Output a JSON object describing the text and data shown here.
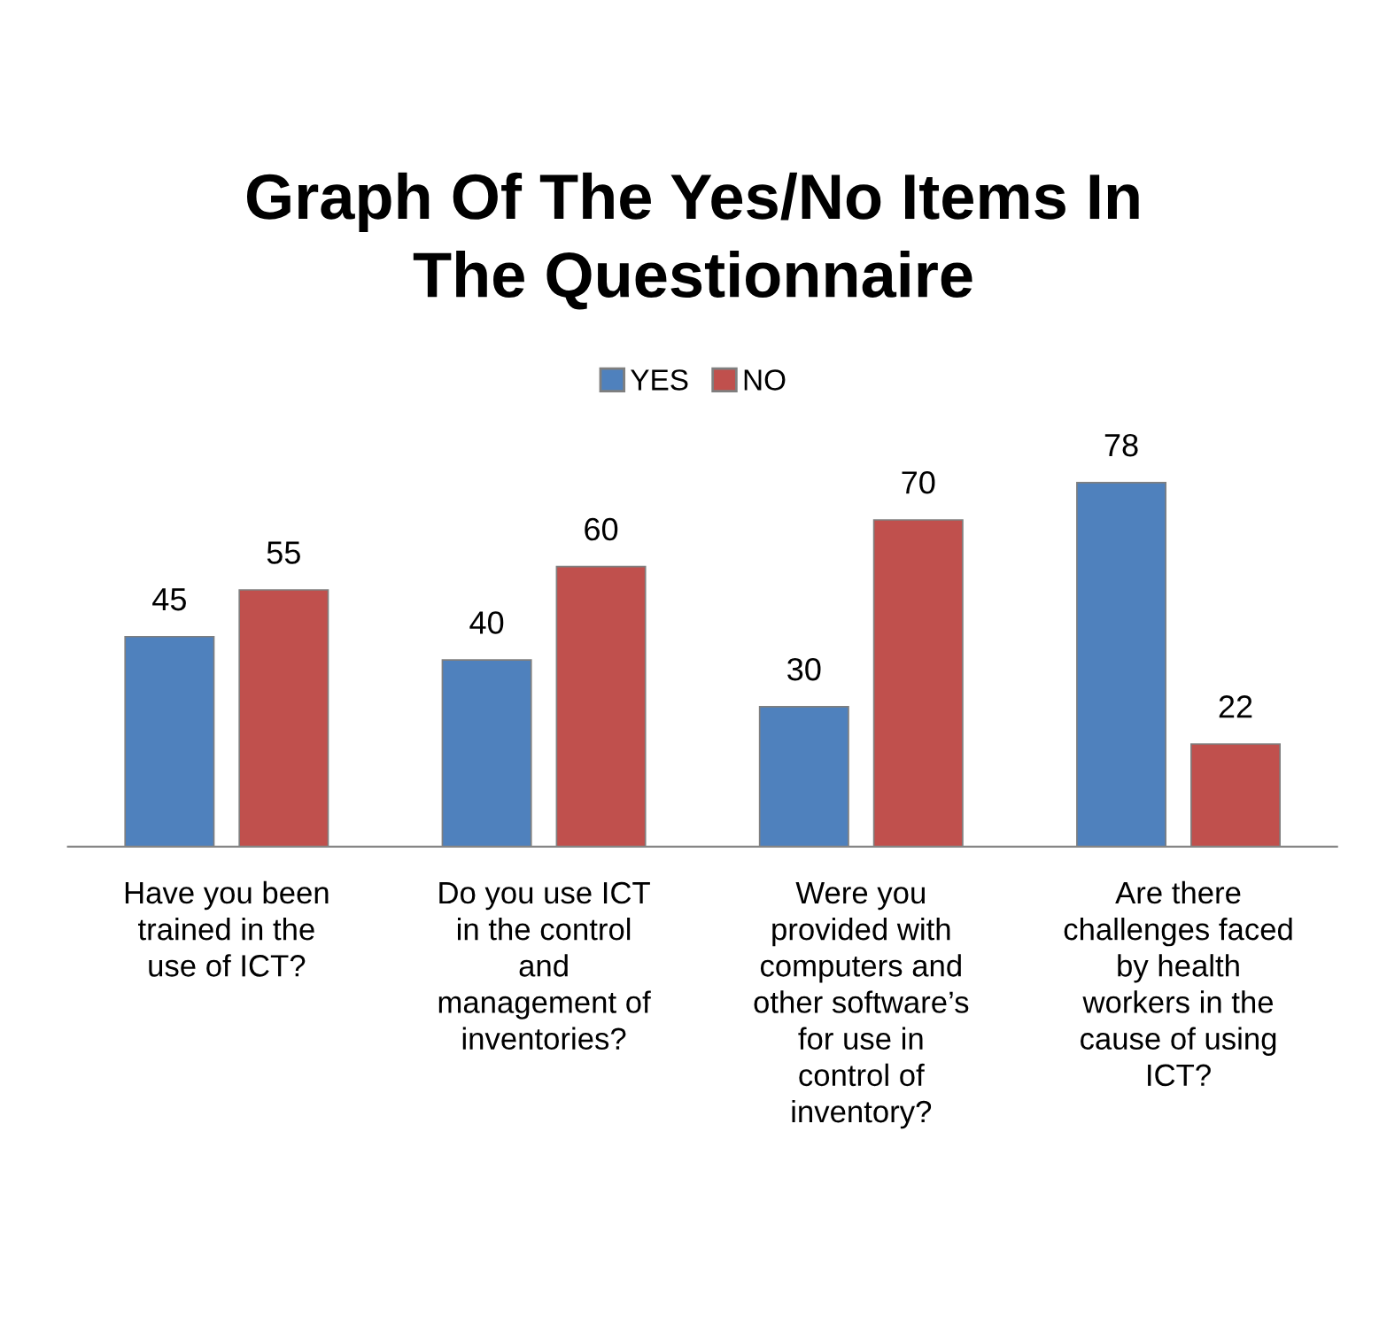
{
  "chart_data": {
    "type": "bar",
    "title": "Graph Of The Yes/No Items In\nThe Questionnaire",
    "categories": [
      "Have you been\ntrained in the\nuse of ICT?",
      "Do you use ICT\nin the control\nand\nmanagement of\ninventories?",
      "Were you\nprovided with\ncomputers and\nother software’s\nfor use in\ncontrol of\ninventory?",
      "Are there\nchallenges faced\nby health\nworkers in the\ncause of using\nICT?"
    ],
    "series": [
      {
        "name": "YES",
        "color": "#4f81bd",
        "values": [
          45,
          40,
          30,
          78
        ]
      },
      {
        "name": "NO",
        "color": "#c0504d",
        "values": [
          55,
          60,
          70,
          22
        ]
      }
    ],
    "data_labels": true,
    "legend": "top",
    "grid": false
  }
}
